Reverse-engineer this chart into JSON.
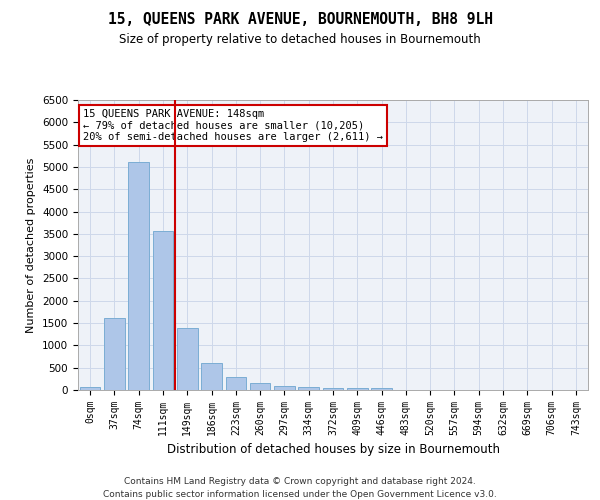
{
  "title": "15, QUEENS PARK AVENUE, BOURNEMOUTH, BH8 9LH",
  "subtitle": "Size of property relative to detached houses in Bournemouth",
  "xlabel": "Distribution of detached houses by size in Bournemouth",
  "ylabel": "Number of detached properties",
  "footer_line1": "Contains HM Land Registry data © Crown copyright and database right 2024.",
  "footer_line2": "Contains public sector information licensed under the Open Government Licence v3.0.",
  "bar_labels": [
    "0sqm",
    "37sqm",
    "74sqm",
    "111sqm",
    "149sqm",
    "186sqm",
    "223sqm",
    "260sqm",
    "297sqm",
    "334sqm",
    "372sqm",
    "409sqm",
    "446sqm",
    "483sqm",
    "520sqm",
    "557sqm",
    "594sqm",
    "632sqm",
    "669sqm",
    "706sqm",
    "743sqm"
  ],
  "bar_values": [
    75,
    1625,
    5100,
    3575,
    1400,
    600,
    300,
    150,
    100,
    75,
    50,
    50,
    50,
    0,
    0,
    0,
    0,
    0,
    0,
    0,
    0
  ],
  "bar_color": "#aec6e8",
  "bar_edgecolor": "#7badd4",
  "grid_color": "#cdd8ea",
  "background_color": "#eef2f8",
  "vline_color": "#cc0000",
  "vline_pos": 3.5,
  "annotation_text": "15 QUEENS PARK AVENUE: 148sqm\n← 79% of detached houses are smaller (10,205)\n20% of semi-detached houses are larger (2,611) →",
  "annotation_box_edgecolor": "#cc0000",
  "ylim": [
    0,
    6500
  ],
  "yticks": [
    0,
    500,
    1000,
    1500,
    2000,
    2500,
    3000,
    3500,
    4000,
    4500,
    5000,
    5500,
    6000,
    6500
  ]
}
